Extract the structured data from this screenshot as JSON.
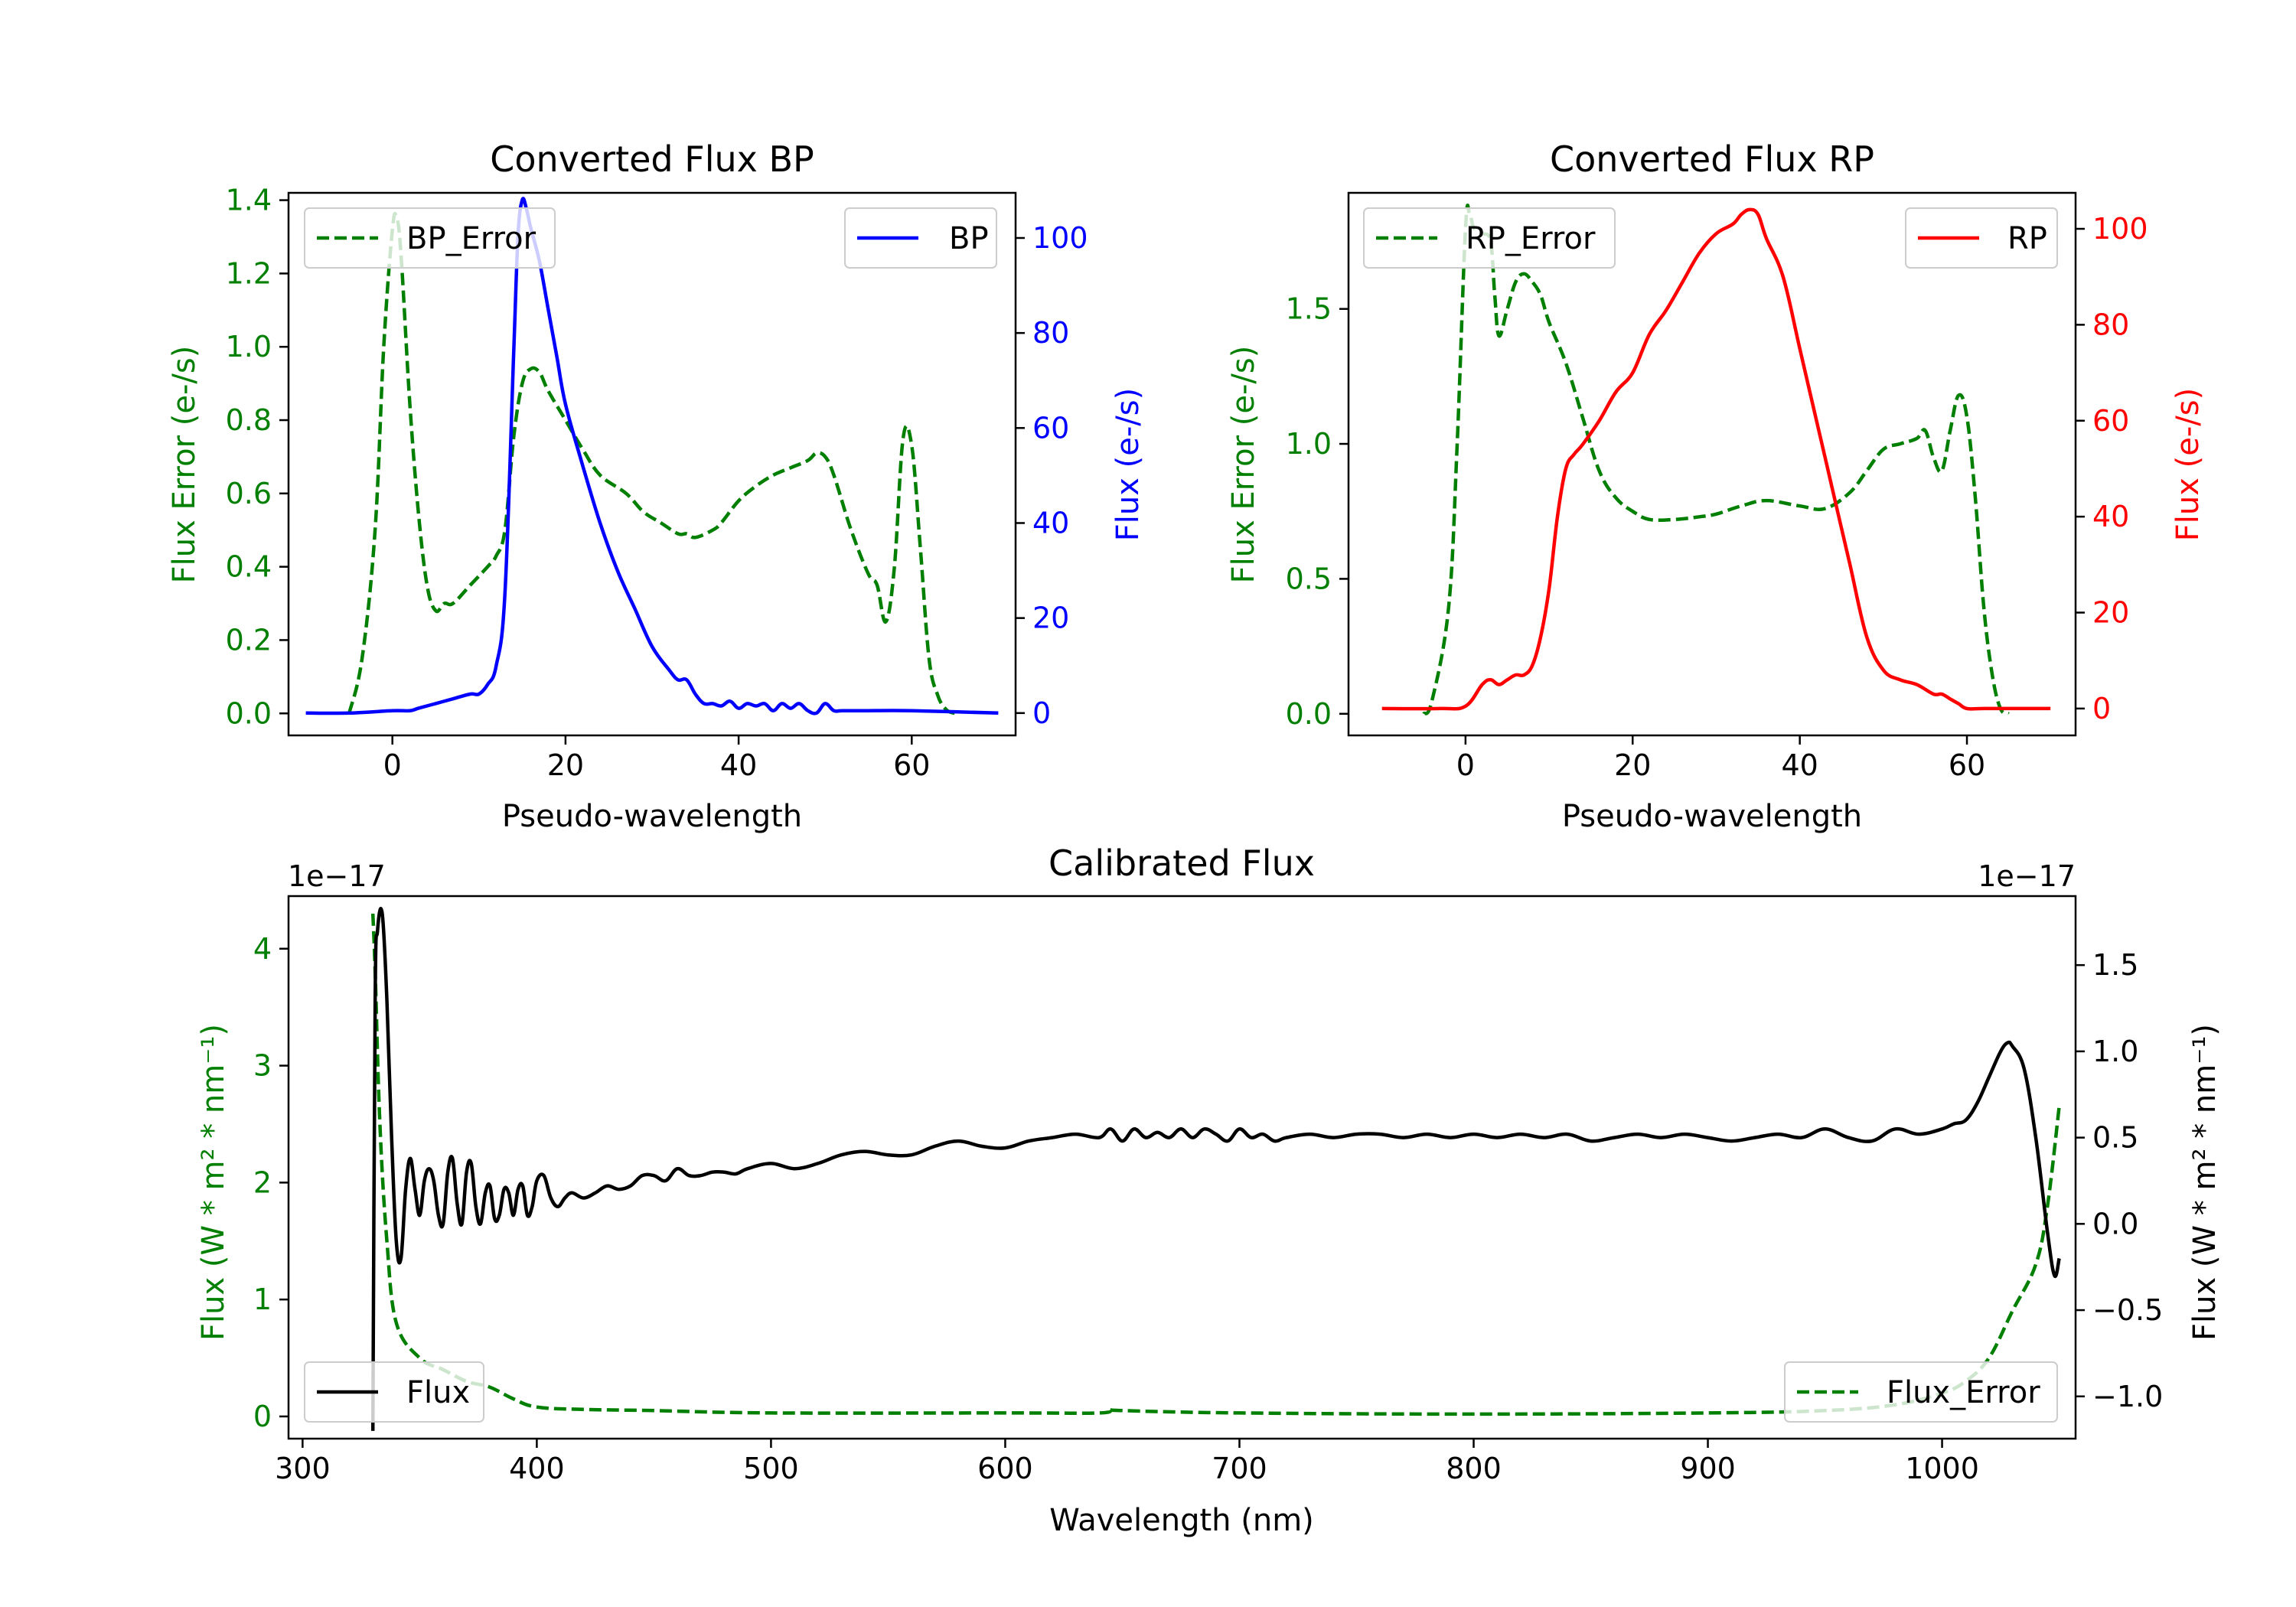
{
  "colors": {
    "error": "#007f00",
    "bp": "#0000ff",
    "rp": "#ff0000",
    "flux": "#000000",
    "axis": "#000000"
  },
  "chart_data": [
    {
      "id": "bp",
      "type": "line",
      "title": "Converted Flux BP",
      "xlabel": "Pseudo-wavelength",
      "ylabel_left": "Flux Error (e-/s)",
      "ylabel_right": "Flux (e-/s)",
      "xlim": [
        -12,
        72
      ],
      "ylim_left": [
        -0.06,
        1.42
      ],
      "ylim_right": [
        -4.7,
        109.5
      ],
      "xticks": [
        0,
        20,
        40,
        60
      ],
      "xtick_labels": [
        "0",
        "20",
        "40",
        "60"
      ],
      "yticks_left": [
        0.0,
        0.2,
        0.4,
        0.6,
        0.8,
        1.0,
        1.2,
        1.4
      ],
      "ytick_labels_left": [
        "0.0",
        "0.2",
        "0.4",
        "0.6",
        "0.8",
        "1.0",
        "1.2",
        "1.4"
      ],
      "yticks_right": [
        0,
        20,
        40,
        60,
        80,
        100
      ],
      "ytick_labels_right": [
        "0",
        "20",
        "40",
        "60",
        "80",
        "100"
      ],
      "legend_left": {
        "label": "BP_Error",
        "position": "upper left"
      },
      "legend_right": {
        "label": "BP",
        "position": "upper right"
      },
      "series": [
        {
          "name": "BP_Error",
          "axis": "left",
          "style": "dashed",
          "color_key": "error",
          "x": [
            -5,
            -3.5,
            -2,
            -1,
            0,
            0.5,
            1,
            2,
            3,
            4,
            5,
            6,
            7,
            9,
            11,
            12,
            13,
            14,
            15,
            16,
            17,
            18,
            20,
            22,
            24,
            27,
            29,
            31,
            33,
            34,
            35,
            37,
            38,
            40,
            42,
            44,
            46,
            48,
            49,
            50,
            51,
            53,
            55,
            56,
            57,
            58,
            59,
            60,
            61,
            62,
            63,
            64,
            65
          ],
          "y": [
            0.0,
            0.15,
            0.5,
            1.0,
            1.32,
            1.35,
            1.25,
            0.85,
            0.55,
            0.35,
            0.28,
            0.3,
            0.3,
            0.35,
            0.4,
            0.43,
            0.5,
            0.75,
            0.9,
            0.94,
            0.93,
            0.88,
            0.8,
            0.72,
            0.65,
            0.6,
            0.55,
            0.52,
            0.49,
            0.49,
            0.48,
            0.5,
            0.52,
            0.58,
            0.62,
            0.65,
            0.67,
            0.69,
            0.71,
            0.7,
            0.65,
            0.5,
            0.38,
            0.35,
            0.25,
            0.4,
            0.75,
            0.73,
            0.45,
            0.15,
            0.05,
            0.01,
            0.0
          ]
        },
        {
          "name": "BP",
          "axis": "right",
          "style": "solid",
          "color_key": "bp",
          "x": [
            -10,
            -5,
            0,
            2,
            3,
            5,
            7,
            9,
            10,
            11,
            12,
            13,
            14,
            14.5,
            15,
            15.5,
            16,
            17,
            18,
            19,
            20,
            22,
            24,
            26,
            28,
            30,
            32,
            33,
            34,
            35,
            36,
            37,
            38,
            39,
            40,
            41,
            42,
            43,
            44,
            45,
            46,
            47,
            48,
            49,
            50,
            51,
            52,
            55,
            60,
            70
          ],
          "y": [
            0,
            0,
            0.5,
            0.5,
            1,
            2,
            3,
            4,
            4,
            6,
            10,
            25,
            75,
            100,
            108,
            106,
            102,
            95,
            85,
            75,
            65,
            52,
            40,
            30,
            22,
            14,
            9,
            7,
            7,
            4,
            2,
            2,
            1.5,
            2.5,
            1,
            2,
            1.5,
            2,
            0.5,
            2,
            1,
            2,
            0.5,
            0,
            2,
            0.5,
            0.5,
            0.5,
            0.5,
            0
          ]
        }
      ]
    },
    {
      "id": "rp",
      "type": "line",
      "title": "Converted Flux RP",
      "xlabel": "Pseudo-wavelength",
      "ylabel_left": "Flux Error (e-/s)",
      "ylabel_right": "Flux (e-/s)",
      "xlim": [
        -14,
        73
      ],
      "ylim_left": [
        -0.08,
        1.93
      ],
      "ylim_right": [
        -5.6,
        107.5
      ],
      "xticks": [
        0,
        20,
        40,
        60
      ],
      "xtick_labels": [
        "0",
        "20",
        "40",
        "60"
      ],
      "yticks_left": [
        0.0,
        0.5,
        1.0,
        1.5
      ],
      "ytick_labels_left": [
        "0.0",
        "0.5",
        "1.0",
        "1.5"
      ],
      "yticks_right": [
        0,
        20,
        40,
        60,
        80,
        100
      ],
      "ytick_labels_right": [
        "0",
        "20",
        "40",
        "60",
        "80",
        "100"
      ],
      "legend_left": {
        "label": "RP_Error",
        "position": "upper left"
      },
      "legend_right": {
        "label": "RP",
        "position": "upper right"
      },
      "series": [
        {
          "name": "RP_Error",
          "axis": "left",
          "style": "dashed",
          "color_key": "error",
          "x": [
            -5,
            -4,
            -2,
            -1,
            0,
            0.5,
            1,
            2,
            3,
            3.5,
            4,
            5,
            6,
            7,
            8,
            9,
            10,
            12,
            14,
            16,
            18,
            20,
            22,
            25,
            28,
            30,
            33,
            36,
            40,
            43,
            46,
            48,
            50,
            52,
            54,
            55,
            56,
            57,
            58,
            59,
            60,
            61,
            62,
            63,
            64,
            65
          ],
          "y": [
            0.0,
            0.05,
            0.4,
            1.0,
            1.8,
            1.85,
            1.8,
            1.78,
            1.75,
            1.55,
            1.4,
            1.5,
            1.6,
            1.63,
            1.6,
            1.55,
            1.45,
            1.3,
            1.1,
            0.9,
            0.8,
            0.75,
            0.72,
            0.72,
            0.73,
            0.74,
            0.77,
            0.79,
            0.77,
            0.76,
            0.82,
            0.9,
            0.98,
            1.0,
            1.02,
            1.05,
            0.95,
            0.9,
            1.05,
            1.18,
            1.1,
            0.8,
            0.4,
            0.15,
            0.02,
            0.0
          ]
        },
        {
          "name": "RP",
          "axis": "right",
          "style": "solid",
          "color_key": "rp",
          "x": [
            -10,
            -3,
            0,
            2,
            3,
            4,
            5,
            6,
            7,
            8,
            9,
            10,
            11,
            12,
            13,
            14,
            16,
            18,
            20,
            22,
            24,
            26,
            28,
            30,
            32,
            33,
            34,
            35,
            36,
            38,
            40,
            42,
            44,
            46,
            48,
            50,
            52,
            54,
            56,
            57,
            58,
            59,
            60,
            62,
            65,
            70
          ],
          "y": [
            0,
            0,
            0.5,
            5,
            6,
            5,
            6,
            7,
            7,
            9,
            15,
            25,
            40,
            50,
            53,
            55,
            60,
            66,
            70,
            78,
            83,
            89,
            95,
            99,
            101,
            103,
            104,
            103,
            98,
            90,
            75,
            60,
            45,
            30,
            15,
            8,
            6,
            5,
            3,
            3,
            2,
            1,
            0,
            0,
            0,
            0
          ]
        }
      ]
    },
    {
      "id": "calibrated",
      "type": "line",
      "title": "Calibrated Flux",
      "xlabel": "Wavelength (nm)",
      "ylabel_left": "Flux (W * m² * nm⁻¹)",
      "ylabel_right": "Flux (W * m² * nm⁻¹)",
      "offset_left": "1e−17",
      "offset_right": "1e−17",
      "xlim": [
        294,
        1057
      ],
      "ylim_left": [
        -0.19,
        4.45
      ],
      "ylim_right": [
        -1.245,
        1.9
      ],
      "xticks": [
        300,
        400,
        500,
        600,
        700,
        800,
        900,
        1000
      ],
      "xtick_labels": [
        "300",
        "400",
        "500",
        "600",
        "700",
        "800",
        "900",
        "1000"
      ],
      "yticks_left": [
        0,
        1,
        2,
        3,
        4
      ],
      "ytick_labels_left": [
        "0",
        "1",
        "2",
        "3",
        "4"
      ],
      "yticks_right": [
        -1.0,
        -0.5,
        0.0,
        0.5,
        1.0,
        1.5
      ],
      "ytick_labels_right": [
        "−1.0",
        "−0.5",
        "0.0",
        "0.5",
        "1.0",
        "1.5"
      ],
      "legend_left": {
        "label": "Flux",
        "position": "lower left"
      },
      "legend_right": {
        "label": "Flux_Error",
        "position": "lower right"
      },
      "series": [
        {
          "name": "Flux_Error",
          "axis": "left",
          "style": "dashed",
          "color_key": "error",
          "x": [
            330,
            331,
            333,
            336,
            340,
            350,
            360,
            370,
            380,
            390,
            400,
            420,
            450,
            500,
            600,
            640,
            645,
            650,
            700,
            800,
            900,
            950,
            980,
            1000,
            1010,
            1020,
            1030,
            1040,
            1045,
            1050
          ],
          "y": [
            4.3,
            3.8,
            2.5,
            1.5,
            0.8,
            0.5,
            0.4,
            0.3,
            0.25,
            0.15,
            0.08,
            0.06,
            0.05,
            0.03,
            0.03,
            0.03,
            0.06,
            0.05,
            0.03,
            0.02,
            0.03,
            0.05,
            0.1,
            0.2,
            0.3,
            0.5,
            0.9,
            1.3,
            1.8,
            2.65
          ]
        },
        {
          "name": "Flux",
          "axis": "right",
          "style": "solid",
          "color_key": "flux",
          "x": [
            330,
            331,
            332,
            334,
            336,
            338,
            340,
            342,
            344,
            346,
            348,
            350,
            352,
            354,
            356,
            358,
            360,
            362,
            364,
            366,
            368,
            370,
            372,
            374,
            376,
            378,
            380,
            382,
            384,
            386,
            388,
            390,
            392,
            394,
            396,
            398,
            400,
            403,
            406,
            409,
            412,
            415,
            420,
            425,
            430,
            435,
            440,
            445,
            450,
            455,
            460,
            465,
            470,
            475,
            480,
            485,
            490,
            500,
            510,
            520,
            530,
            540,
            550,
            560,
            570,
            580,
            590,
            600,
            610,
            620,
            630,
            640,
            645,
            650,
            655,
            660,
            665,
            670,
            675,
            680,
            685,
            690,
            695,
            700,
            705,
            710,
            715,
            720,
            730,
            740,
            750,
            760,
            770,
            780,
            790,
            800,
            810,
            820,
            830,
            840,
            850,
            860,
            870,
            880,
            890,
            900,
            910,
            920,
            930,
            940,
            950,
            960,
            970,
            980,
            990,
            1000,
            1005,
            1010,
            1015,
            1020,
            1025,
            1028,
            1030,
            1035,
            1040,
            1045,
            1048,
            1050
          ],
          "y": [
            -1.2,
            1.3,
            1.7,
            1.8,
            1.3,
            0.5,
            -0.1,
            -0.2,
            0.2,
            0.38,
            0.2,
            0.05,
            0.25,
            0.32,
            0.25,
            0.05,
            0.0,
            0.3,
            0.38,
            0.12,
            0.0,
            0.3,
            0.35,
            0.1,
            0.0,
            0.18,
            0.22,
            0.03,
            0.05,
            0.2,
            0.18,
            0.05,
            0.2,
            0.22,
            0.05,
            0.1,
            0.25,
            0.28,
            0.15,
            0.1,
            0.15,
            0.18,
            0.15,
            0.18,
            0.22,
            0.2,
            0.22,
            0.28,
            0.28,
            0.25,
            0.32,
            0.28,
            0.28,
            0.3,
            0.3,
            0.29,
            0.32,
            0.35,
            0.32,
            0.35,
            0.4,
            0.42,
            0.4,
            0.4,
            0.45,
            0.48,
            0.45,
            0.44,
            0.48,
            0.5,
            0.52,
            0.5,
            0.55,
            0.48,
            0.55,
            0.5,
            0.53,
            0.5,
            0.55,
            0.5,
            0.55,
            0.52,
            0.48,
            0.55,
            0.5,
            0.52,
            0.48,
            0.5,
            0.52,
            0.5,
            0.52,
            0.52,
            0.5,
            0.52,
            0.5,
            0.52,
            0.5,
            0.52,
            0.5,
            0.52,
            0.48,
            0.5,
            0.52,
            0.5,
            0.52,
            0.5,
            0.48,
            0.5,
            0.52,
            0.5,
            0.55,
            0.5,
            0.48,
            0.55,
            0.52,
            0.55,
            0.58,
            0.6,
            0.7,
            0.85,
            1.0,
            1.05,
            1.03,
            0.9,
            0.5,
            -0.05,
            -0.3,
            -0.2
          ]
        }
      ]
    }
  ]
}
